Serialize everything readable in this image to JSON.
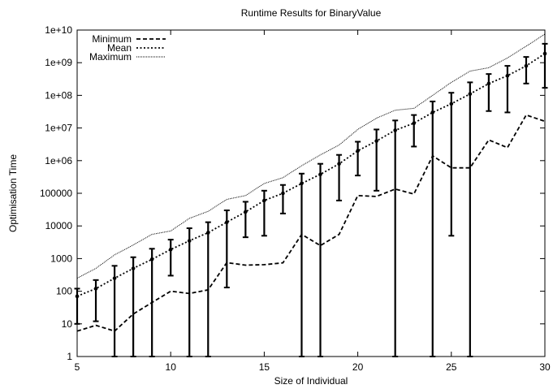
{
  "chart_data": {
    "type": "line",
    "title": "Runtime Results for BinaryValue",
    "xlabel": "Size of Individual",
    "ylabel": "Optimisation Time",
    "xlim": [
      5,
      30
    ],
    "ylim": [
      1,
      10000000000
    ],
    "y_scale": "log",
    "grid": false,
    "legend_position": "top-left",
    "x_ticks": [
      5,
      10,
      15,
      20,
      25,
      30
    ],
    "x_tick_labels": [
      "5",
      "10",
      "15",
      "20",
      "25",
      "30"
    ],
    "y_ticks": [
      1,
      10,
      100,
      1000,
      10000,
      100000,
      1000000,
      10000000,
      100000000,
      1000000000,
      10000000000
    ],
    "y_tick_labels": [
      "1",
      "10",
      "100",
      "1000",
      "10000",
      "100000",
      "1e+06",
      "1e+07",
      "1e+08",
      "1e+09",
      "1e+10"
    ],
    "x": [
      5,
      6,
      7,
      8,
      9,
      10,
      11,
      12,
      13,
      14,
      15,
      16,
      17,
      18,
      19,
      20,
      21,
      22,
      23,
      24,
      25,
      26,
      27,
      28,
      29,
      30
    ],
    "series": [
      {
        "name": "Minimum",
        "line_style": "dashed",
        "values": [
          6,
          9,
          6,
          20,
          45,
          100,
          85,
          110,
          750,
          630,
          650,
          740,
          5500,
          2500,
          5500,
          85000,
          80000,
          135000,
          95000,
          1400000,
          600000,
          600000,
          4300000,
          2500000,
          25000000,
          16000000
        ]
      },
      {
        "name": "Mean",
        "line_style": "dotted",
        "values": [
          70,
          120,
          250,
          500,
          950,
          1900,
          3500,
          6200,
          13000,
          27000,
          60000,
          100000,
          200000,
          380000,
          800000,
          2000000,
          4000000,
          8500000,
          14000000,
          30000000,
          55000000,
          110000000,
          230000000,
          400000000,
          800000000,
          1900000000
        ]
      },
      {
        "name": "Maximum",
        "line_style": "densely-dotted",
        "values": [
          250,
          500,
          1300,
          2600,
          5500,
          7000,
          17000,
          28000,
          65000,
          85000,
          200000,
          300000,
          700000,
          1500000,
          3000000,
          9000000,
          20000000,
          35000000,
          40000000,
          100000000,
          250000000,
          550000000,
          700000000,
          1400000000,
          3200000000,
          7500000000
        ]
      }
    ],
    "error_bars": {
      "low": [
        10,
        12,
        1,
        1,
        1,
        300,
        1,
        1,
        130,
        4500,
        5000,
        24000,
        1,
        1,
        60000,
        350000,
        120000,
        1,
        2700000,
        1,
        5000,
        1,
        33000000,
        30000000,
        230000000,
        170000000
      ],
      "high": [
        120,
        220,
        600,
        1100,
        2000,
        3800,
        8500,
        13000,
        30000,
        55000,
        120000,
        180000,
        400000,
        800000,
        1500000,
        3800000,
        9000000,
        17000000,
        25000000,
        65000000,
        120000000,
        250000000,
        450000000,
        800000000,
        1500000000,
        3800000000
      ]
    }
  }
}
